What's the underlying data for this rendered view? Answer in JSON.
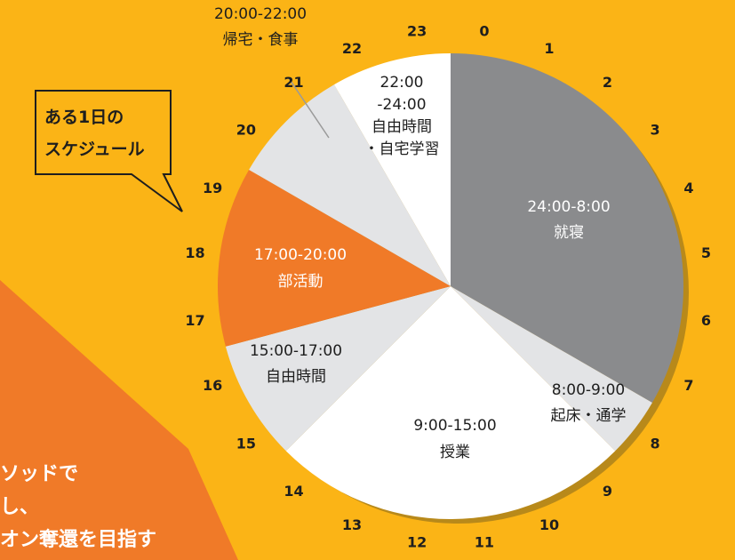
{
  "callout": {
    "line1": "ある1日の",
    "line2": "スケジュール"
  },
  "banner": {
    "line1": "ソッドで",
    "line2": "し、",
    "line3": "オン奪還を目指す"
  },
  "colors": {
    "background": "#fbb416",
    "sleep": "#8a8b8d",
    "gray": "#e3e4e6",
    "white": "#ffffff",
    "club": "#f07a28",
    "banner": "#f07a28",
    "shadow": "#b8891a"
  },
  "chart_data": {
    "type": "pie",
    "unit": "hours",
    "hour_labels": [
      "0",
      "1",
      "2",
      "3",
      "4",
      "5",
      "6",
      "7",
      "8",
      "9",
      "10",
      "11",
      "12",
      "13",
      "14",
      "15",
      "16",
      "17",
      "18",
      "19",
      "20",
      "21",
      "22",
      "23"
    ],
    "segments": [
      {
        "time": "24:00-8:00",
        "activity": "就寝",
        "start": 0,
        "end": 8,
        "color": "#8a8b8d"
      },
      {
        "time": "8:00-9:00",
        "activity": "起床・通学",
        "start": 8,
        "end": 9,
        "color": "#e3e4e6"
      },
      {
        "time": "9:00-15:00",
        "activity": "授業",
        "start": 9,
        "end": 15,
        "color": "#ffffff"
      },
      {
        "time": "15:00-17:00",
        "activity": "自由時間",
        "start": 15,
        "end": 17,
        "color": "#e3e4e6"
      },
      {
        "time": "17:00-20:00",
        "activity": "部活動",
        "start": 17,
        "end": 20,
        "color": "#f07a28"
      },
      {
        "time": "20:00-22:00",
        "activity": "帰宅・食事",
        "start": 20,
        "end": 22,
        "color": "#e3e4e6"
      },
      {
        "time": "22:00",
        "time2": "-24:00",
        "activity": "自由時間",
        "activity2": "・自宅学習",
        "start": 22,
        "end": 24,
        "color": "#ffffff"
      }
    ]
  }
}
